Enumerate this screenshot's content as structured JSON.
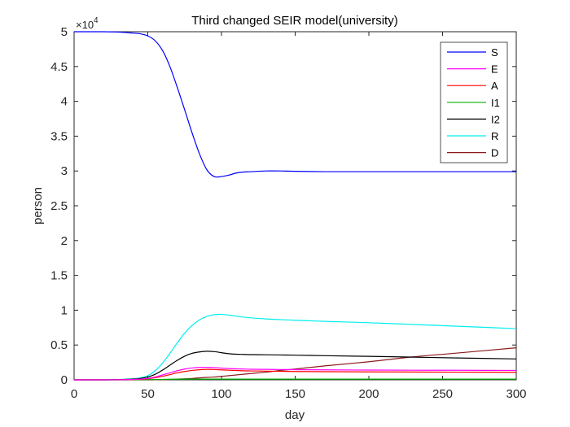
{
  "chart_data": {
    "type": "line",
    "title": "Third changed SEIR model(university)",
    "xlabel": "day",
    "ylabel": "person",
    "xlim": [
      0,
      300
    ],
    "ylim": [
      0,
      5
    ],
    "y_exponent_base": "×10",
    "y_exponent_power": "4",
    "x_ticks": [
      "0",
      "50",
      "100",
      "150",
      "200",
      "250",
      "300"
    ],
    "y_ticks": [
      "0",
      "0.5",
      "1",
      "1.5",
      "2",
      "2.5",
      "3",
      "3.5",
      "4",
      "4.5",
      "5"
    ],
    "legend_position": "top-right",
    "grid": false,
    "x": [
      0,
      10,
      20,
      30,
      40,
      45,
      50,
      55,
      60,
      65,
      70,
      75,
      80,
      85,
      90,
      95,
      100,
      105,
      110,
      115,
      120,
      130,
      140,
      150,
      170,
      200,
      230,
      260,
      300
    ],
    "series": [
      {
        "name": "S",
        "color": "#0000ff",
        "values": [
          5.0,
          5.0,
          5.0,
          4.995,
          4.98,
          4.97,
          4.94,
          4.87,
          4.73,
          4.5,
          4.2,
          3.88,
          3.55,
          3.25,
          3.02,
          2.92,
          2.92,
          2.94,
          2.97,
          2.985,
          2.99,
          3.0,
          3.0,
          2.995,
          2.99,
          2.99,
          2.99,
          2.99,
          2.99
        ]
      },
      {
        "name": "E",
        "color": "#ff00ff",
        "values": [
          0,
          0,
          0,
          0.002,
          0.005,
          0.01,
          0.02,
          0.04,
          0.07,
          0.1,
          0.13,
          0.155,
          0.17,
          0.178,
          0.18,
          0.175,
          0.168,
          0.162,
          0.158,
          0.155,
          0.152,
          0.15,
          0.148,
          0.146,
          0.143,
          0.14,
          0.138,
          0.137,
          0.135
        ]
      },
      {
        "name": "A",
        "color": "#ff0000",
        "values": [
          0,
          0,
          0,
          0.002,
          0.004,
          0.008,
          0.015,
          0.03,
          0.05,
          0.075,
          0.1,
          0.12,
          0.135,
          0.145,
          0.15,
          0.148,
          0.143,
          0.138,
          0.134,
          0.13,
          0.128,
          0.125,
          0.122,
          0.12,
          0.117,
          0.114,
          0.112,
          0.11,
          0.108
        ]
      },
      {
        "name": "I1",
        "color": "#00b000",
        "values": [
          0,
          0,
          0,
          0,
          0.001,
          0.002,
          0.003,
          0.004,
          0.006,
          0.008,
          0.009,
          0.01,
          0.01,
          0.01,
          0.01,
          0.01,
          0.01,
          0.01,
          0.01,
          0.01,
          0.01,
          0.01,
          0.01,
          0.01,
          0.01,
          0.01,
          0.01,
          0.01,
          0.01
        ]
      },
      {
        "name": "I2",
        "color": "#000000",
        "values": [
          0,
          0,
          0,
          0.003,
          0.01,
          0.02,
          0.04,
          0.08,
          0.14,
          0.21,
          0.28,
          0.34,
          0.38,
          0.4,
          0.41,
          0.405,
          0.39,
          0.375,
          0.368,
          0.365,
          0.362,
          0.36,
          0.357,
          0.354,
          0.347,
          0.337,
          0.326,
          0.314,
          0.3
        ]
      },
      {
        "name": "R",
        "color": "#00eeee",
        "values": [
          0,
          0,
          0,
          0.005,
          0.015,
          0.03,
          0.06,
          0.13,
          0.24,
          0.38,
          0.53,
          0.67,
          0.78,
          0.86,
          0.91,
          0.935,
          0.94,
          0.93,
          0.915,
          0.9,
          0.89,
          0.875,
          0.865,
          0.856,
          0.84,
          0.82,
          0.795,
          0.77,
          0.735
        ]
      },
      {
        "name": "D",
        "color": "#8b1a1a",
        "values": [
          0,
          0,
          0,
          0,
          0,
          0,
          0,
          0.001,
          0.003,
          0.006,
          0.01,
          0.015,
          0.02,
          0.028,
          0.035,
          0.04,
          0.05,
          0.06,
          0.07,
          0.08,
          0.09,
          0.11,
          0.135,
          0.155,
          0.2,
          0.26,
          0.33,
          0.385,
          0.46
        ]
      }
    ]
  }
}
